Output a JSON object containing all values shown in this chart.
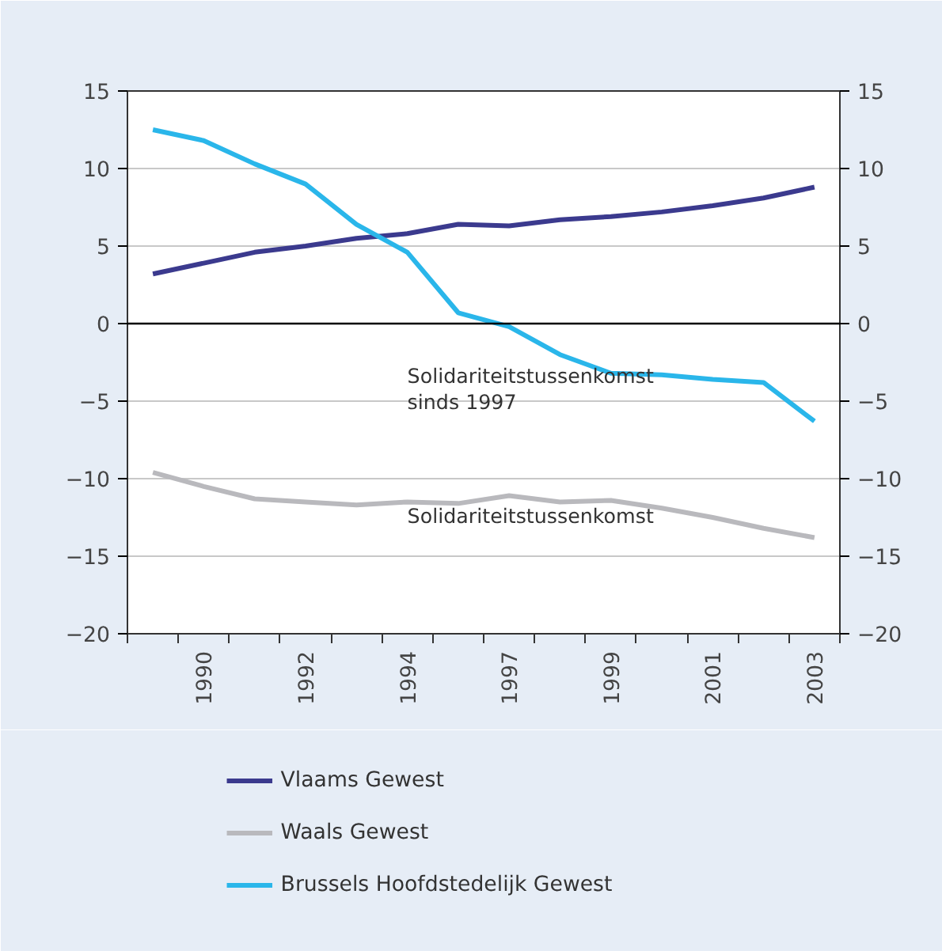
{
  "chart_data": {
    "type": "line",
    "categories": [
      null,
      "1990",
      null,
      "1992",
      null,
      "1994",
      null,
      "1997",
      null,
      "1999",
      null,
      "2001",
      null,
      "2003"
    ],
    "series": [
      {
        "name": "Vlaams Gewest",
        "color": "#3b3a8e",
        "values": [
          3.2,
          3.9,
          4.6,
          5.0,
          5.5,
          5.8,
          6.4,
          6.3,
          6.7,
          6.9,
          7.2,
          7.6,
          8.1,
          8.8
        ]
      },
      {
        "name": "Waals Gewest",
        "color": "#b9b9bd",
        "values": [
          -9.6,
          -10.5,
          -11.3,
          -11.5,
          -11.7,
          -11.5,
          -11.6,
          -11.1,
          -11.5,
          -11.4,
          -11.9,
          -12.5,
          -13.2,
          -13.8
        ]
      },
      {
        "name": "Brussels Hoofdstedelijk Gewest",
        "color": "#2ab6ea",
        "values": [
          12.5,
          11.8,
          10.3,
          9.0,
          6.4,
          4.6,
          0.7,
          -0.2,
          -2.0,
          -3.2,
          -3.3,
          -3.6,
          -3.8,
          -6.3
        ]
      }
    ],
    "ylim": [
      -20,
      15
    ],
    "yticks": [
      {
        "value": -20,
        "label": "−20"
      },
      {
        "value": -15,
        "label": "−15"
      },
      {
        "value": -10,
        "label": "−10"
      },
      {
        "value": -5,
        "label": "−5"
      },
      0,
      5,
      10,
      15
    ],
    "y2lim": [
      -20,
      15
    ],
    "y2ticks": [
      {
        "value": -20,
        "label": "−20"
      },
      {
        "value": -15,
        "label": "−15"
      },
      {
        "value": -10,
        "label": "−10"
      },
      {
        "value": -5,
        "label": "−5"
      },
      0,
      5,
      10,
      15
    ],
    "ref_lines": [
      {
        "axis": "y",
        "value": 0,
        "color": "#000000"
      }
    ],
    "annotations": [
      "Solidariteitstussenkomst\nsinds 1997",
      "Solidariteitstussenkomst"
    ],
    "grid": "y",
    "legend": "bottom",
    "marker": "none",
    "line_style": "solid"
  }
}
